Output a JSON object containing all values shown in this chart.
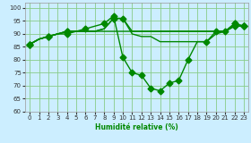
{
  "xlabel": "Humidité relative (%)",
  "bg_color": "#cceeff",
  "grid_color": "#88cc88",
  "line_color": "#008800",
  "ylim": [
    60,
    102
  ],
  "xlim": [
    -0.5,
    23.5
  ],
  "yticks": [
    60,
    65,
    70,
    75,
    80,
    85,
    90,
    95,
    100
  ],
  "xticks": [
    0,
    1,
    2,
    3,
    4,
    5,
    6,
    7,
    8,
    9,
    10,
    11,
    12,
    13,
    14,
    15,
    16,
    17,
    18,
    19,
    20,
    21,
    22,
    23
  ],
  "series": [
    {
      "y": [
        86,
        88,
        89,
        90,
        91,
        91,
        91,
        91,
        92,
        96,
        96,
        91,
        91,
        91,
        91,
        91,
        91,
        91,
        91,
        91,
        91,
        91,
        93,
        93
      ],
      "mx": [
        0,
        2,
        4,
        9,
        22,
        23
      ],
      "my": [
        86,
        89,
        91,
        96,
        93,
        93
      ]
    },
    {
      "y": [
        86,
        88,
        89,
        90,
        91,
        91,
        92,
        93,
        94,
        97,
        81,
        75,
        74,
        69,
        68,
        71,
        72,
        80,
        87,
        87,
        91,
        91,
        94,
        93
      ],
      "mx": [
        0,
        2,
        4,
        6,
        8,
        9,
        10,
        11,
        12,
        13,
        14,
        15,
        16,
        17,
        20,
        21,
        22,
        23
      ],
      "my": [
        86,
        89,
        91,
        92,
        94,
        97,
        81,
        75,
        74,
        69,
        68,
        71,
        72,
        80,
        91,
        91,
        94,
        93
      ]
    },
    {
      "y": [
        86,
        88,
        89,
        90,
        90,
        91,
        91,
        91,
        92,
        96,
        96,
        90,
        89,
        89,
        87,
        87,
        87,
        87,
        87,
        87,
        90,
        91,
        94,
        93
      ],
      "mx": [
        0,
        2,
        4,
        9,
        10,
        19,
        22,
        23
      ],
      "my": [
        86,
        89,
        90,
        96,
        96,
        87,
        94,
        93
      ]
    },
    {
      "y": [
        86,
        88,
        89,
        90,
        91,
        91,
        91,
        91,
        91,
        91,
        91,
        91,
        91,
        91,
        91,
        91,
        91,
        91,
        91,
        91,
        91,
        91,
        93,
        93
      ],
      "mx": [
        0,
        22,
        23
      ],
      "my": [
        86,
        93,
        93
      ]
    }
  ],
  "markersize": 3.5,
  "linewidth": 1.0
}
